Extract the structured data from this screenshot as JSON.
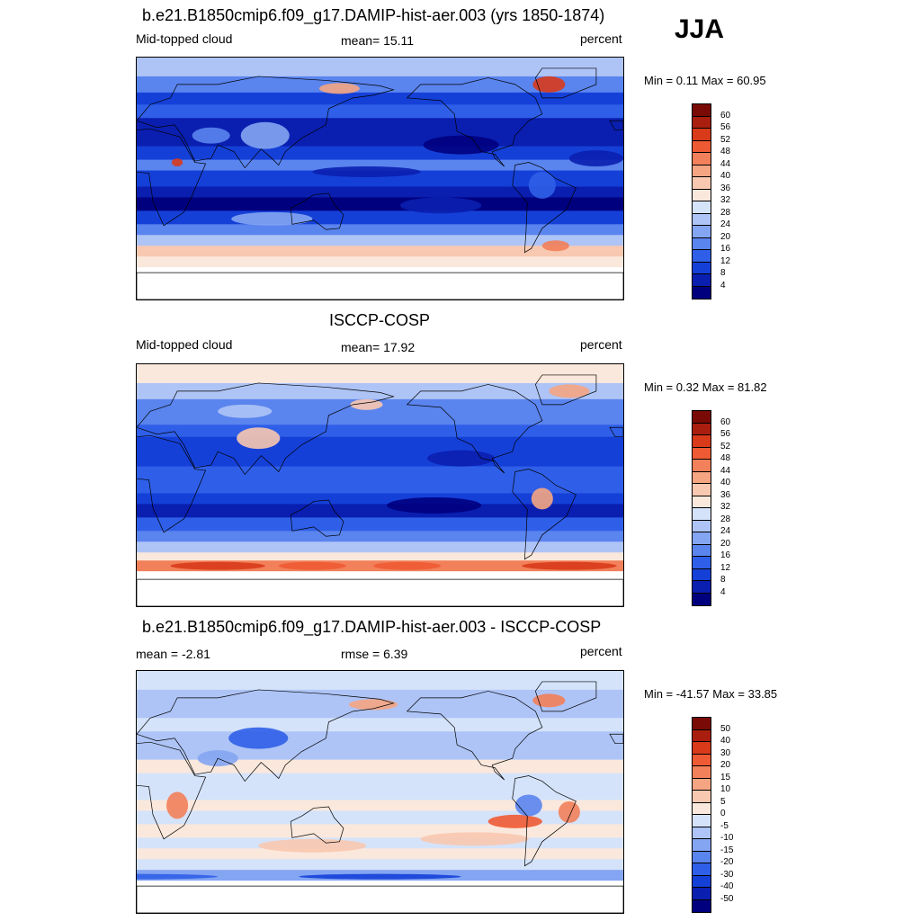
{
  "season": "JJA",
  "panels": [
    {
      "id": "model",
      "title": "b.e21.B1850cmip6.f09_g17.DAMIP-hist-aer.003 (yrs 1850-1874)",
      "left_label": "Mid-topped cloud",
      "center_label": "mean=  15.11",
      "right_label": "percent",
      "minmax": "Min =   0.11 Max =  60.95"
    },
    {
      "id": "obs",
      "title": "ISCCP-COSP",
      "left_label": "Mid-topped cloud",
      "center_label": "mean=  17.92",
      "right_label": "percent",
      "minmax": "Min =   0.32 Max =  81.82"
    },
    {
      "id": "diff",
      "title": "b.e21.B1850cmip6.f09_g17.DAMIP-hist-aer.003 - ISCCP-COSP",
      "left_label": "mean =  -2.81",
      "center_label": "rmse =   6.39",
      "right_label": "percent",
      "minmax": "Min = -41.57 Max =  33.85"
    }
  ],
  "chart_data": [
    {
      "type": "heatmap",
      "title": "b.e21.B1850cmip6.f09_g17.DAMIP-hist-aer.003 (yrs 1850-1874)",
      "variable": "Mid-topped cloud",
      "units": "percent",
      "mean": 15.11,
      "min": 0.11,
      "max": 60.95,
      "colorbar_levels": [
        4,
        8,
        12,
        16,
        20,
        24,
        28,
        32,
        36,
        40,
        44,
        48,
        52,
        56,
        60
      ],
      "colorbar_colors": [
        "#00007f",
        "#0a1fb0",
        "#1540d8",
        "#2f5fe8",
        "#5a84ee",
        "#84a5f2",
        "#aec4f6",
        "#d4e3fa",
        "#fbe8dc",
        "#f8c8b0",
        "#f5a582",
        "#f2805a",
        "#ee5a33",
        "#d83a1a",
        "#a91e0e",
        "#7a0a05"
      ]
    },
    {
      "type": "heatmap",
      "title": "ISCCP-COSP",
      "variable": "Mid-topped cloud",
      "units": "percent",
      "mean": 17.92,
      "min": 0.32,
      "max": 81.82,
      "colorbar_levels": [
        4,
        8,
        12,
        16,
        20,
        24,
        28,
        32,
        36,
        40,
        44,
        48,
        52,
        56,
        60
      ],
      "colorbar_colors": [
        "#00007f",
        "#0a1fb0",
        "#1540d8",
        "#2f5fe8",
        "#5a84ee",
        "#84a5f2",
        "#aec4f6",
        "#d4e3fa",
        "#fbe8dc",
        "#f8c8b0",
        "#f5a582",
        "#f2805a",
        "#ee5a33",
        "#d83a1a",
        "#a91e0e",
        "#7a0a05"
      ]
    },
    {
      "type": "heatmap",
      "title": "b.e21.B1850cmip6.f09_g17.DAMIP-hist-aer.003 - ISCCP-COSP",
      "units": "percent",
      "mean": -2.81,
      "rmse": 6.39,
      "min": -41.57,
      "max": 33.85,
      "colorbar_levels": [
        -50,
        -40,
        -30,
        -20,
        -15,
        -10,
        -5,
        0,
        5,
        10,
        15,
        20,
        30,
        40,
        50
      ],
      "colorbar_colors": [
        "#00007f",
        "#0a1fb0",
        "#1540d8",
        "#2f5fe8",
        "#5a84ee",
        "#84a5f2",
        "#aec4f6",
        "#d4e3fa",
        "#fbe8dc",
        "#f8c8b0",
        "#f5a582",
        "#f2805a",
        "#ee5a33",
        "#d83a1a",
        "#a91e0e",
        "#7a0a05"
      ]
    }
  ]
}
